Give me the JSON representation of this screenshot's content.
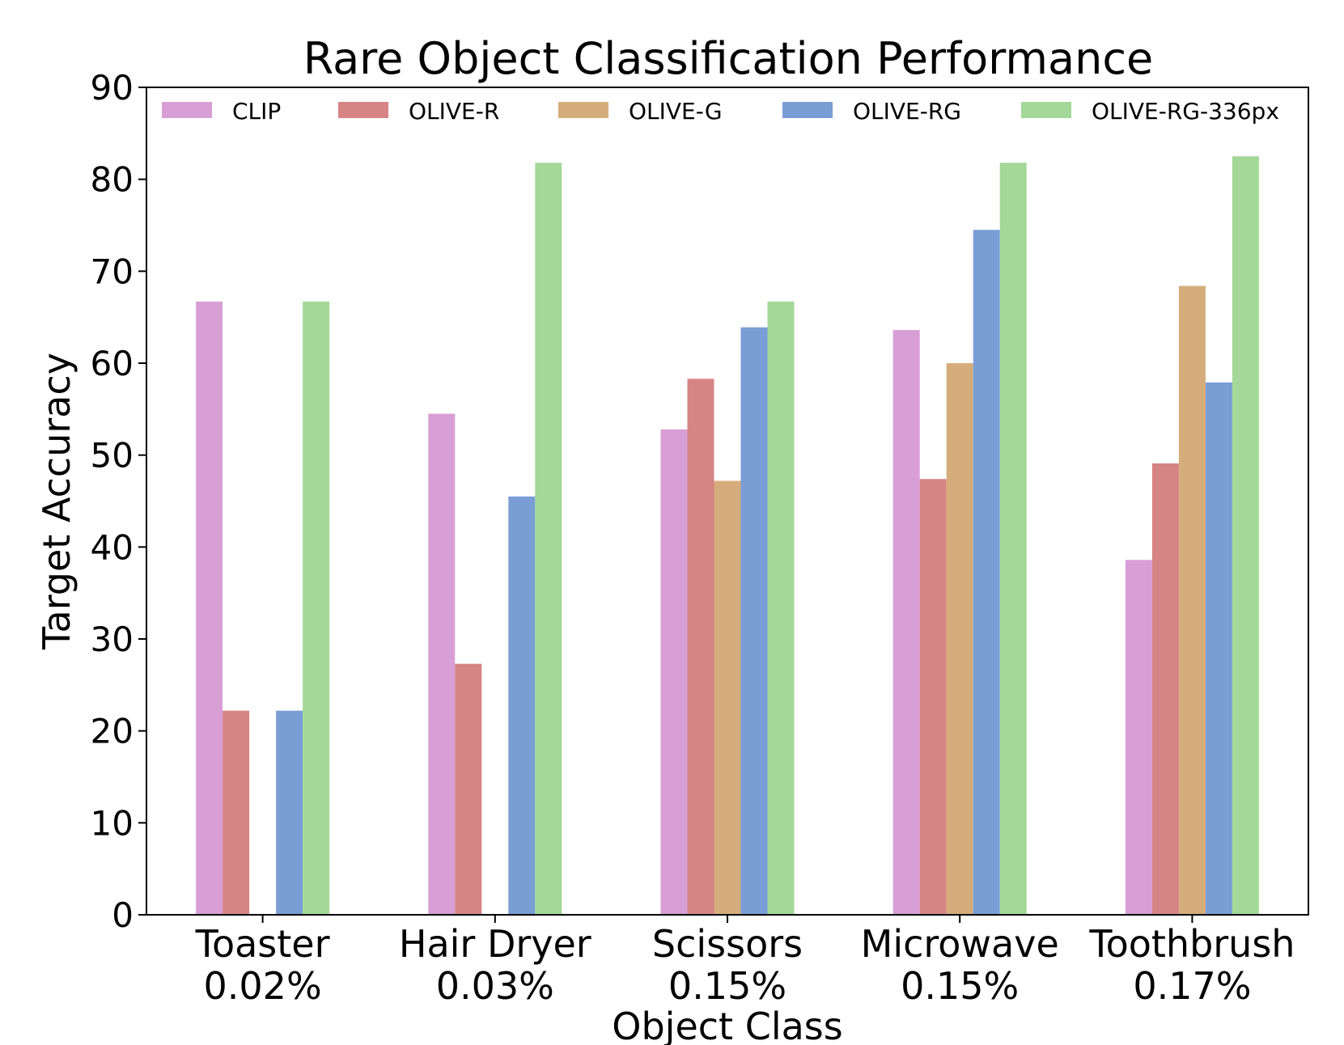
{
  "chart_data": {
    "type": "bar",
    "title": "Rare Object Classification Performance",
    "xlabel": "Object Class",
    "ylabel": "Target Accuracy",
    "ylim": [
      0,
      90
    ],
    "yticks": [
      0,
      10,
      20,
      30,
      40,
      50,
      60,
      70,
      80,
      90
    ],
    "categories": [
      {
        "name": "Toaster",
        "pct": "0.02%"
      },
      {
        "name": "Hair Dryer",
        "pct": "0.03%"
      },
      {
        "name": "Scissors",
        "pct": "0.15%"
      },
      {
        "name": "Microwave",
        "pct": "0.15%"
      },
      {
        "name": "Toothbrush",
        "pct": "0.17%"
      }
    ],
    "series": [
      {
        "name": "CLIP",
        "color": "#d89ed6",
        "values": [
          66.7,
          54.5,
          52.8,
          63.6,
          38.6
        ]
      },
      {
        "name": "OLIVE-R",
        "color": "#d78484",
        "values": [
          22.2,
          27.3,
          58.3,
          47.4,
          49.1
        ]
      },
      {
        "name": "OLIVE-G",
        "color": "#d5ad7c",
        "values": [
          0,
          0,
          47.2,
          60.0,
          68.4
        ]
      },
      {
        "name": "OLIVE-RG",
        "color": "#7b9dd6",
        "values": [
          22.2,
          45.5,
          63.9,
          74.5,
          57.9
        ]
      },
      {
        "name": "OLIVE-RG-336px",
        "color": "#a3d898",
        "values": [
          66.7,
          81.8,
          66.7,
          81.8,
          82.5
        ]
      }
    ],
    "legend": "top, single row",
    "grid": false
  }
}
